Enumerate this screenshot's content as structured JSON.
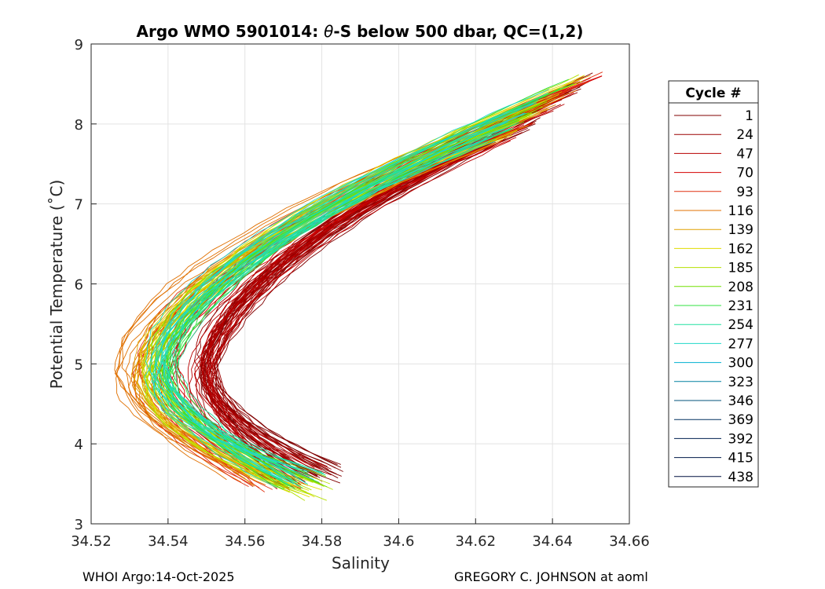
{
  "chart_data": {
    "type": "line",
    "title_prefix": "Argo WMO 5901014: ",
    "title_symbol": "θ",
    "title_suffix": "-S below 500 dbar,  QC=(1,2)",
    "xlabel": "Salinity",
    "ylabel": "Potential Temperature (˚C)",
    "xlim": [
      34.52,
      34.66
    ],
    "ylim": [
      3,
      9
    ],
    "xticks": [
      34.52,
      34.54,
      34.56,
      34.58,
      34.6,
      34.62,
      34.64,
      34.66
    ],
    "xtick_labels": [
      "34.52",
      "34.54",
      "34.56",
      "34.58",
      "34.6",
      "34.62",
      "34.64",
      "34.66"
    ],
    "yticks": [
      3,
      4,
      5,
      6,
      7,
      8,
      9
    ],
    "ytick_labels": [
      "3",
      "4",
      "5",
      "6",
      "7",
      "8",
      "9"
    ],
    "grid": true,
    "legend_title": "Cycle #",
    "legend_position": "right, outside plot",
    "series": [
      {
        "name": "1",
        "color": "#800000",
        "s_at_5C": 34.551,
        "deep_end": [
          34.58,
          3.62
        ]
      },
      {
        "name": "24",
        "color": "#9c0000",
        "s_at_5C": 34.55,
        "deep_end": [
          34.578,
          3.6
        ]
      },
      {
        "name": "47",
        "color": "#b80000",
        "s_at_5C": 34.548,
        "deep_end": [
          34.575,
          3.58
        ]
      },
      {
        "name": "70",
        "color": "#d40000",
        "s_at_5C": 34.54,
        "deep_end": [
          34.572,
          3.55
        ]
      },
      {
        "name": "93",
        "color": "#e03010",
        "s_at_5C": 34.534,
        "deep_end": [
          34.566,
          3.52
        ]
      },
      {
        "name": "116",
        "color": "#e07000",
        "s_at_5C": 34.529,
        "deep_end": [
          34.56,
          3.58
        ]
      },
      {
        "name": "139",
        "color": "#e0a000",
        "s_at_5C": 34.532,
        "deep_end": [
          34.568,
          3.55
        ]
      },
      {
        "name": "162",
        "color": "#e0dc00",
        "s_at_5C": 34.534,
        "deep_end": [
          34.574,
          3.45
        ]
      },
      {
        "name": "185",
        "color": "#b4e000",
        "s_at_5C": 34.536,
        "deep_end": [
          34.578,
          3.4
        ]
      },
      {
        "name": "208",
        "color": "#70e000",
        "s_at_5C": 34.538,
        "deep_end": [
          34.576,
          3.5
        ]
      },
      {
        "name": "231",
        "color": "#30e040",
        "s_at_5C": 34.54,
        "deep_end": [
          34.574,
          3.55
        ]
      },
      {
        "name": "254",
        "color": "#20e0a0",
        "s_at_5C": 34.539,
        "deep_end": [
          34.575,
          3.58
        ]
      },
      {
        "name": "277",
        "color": "#20d8c8",
        "s_at_5C": 34.537,
        "deep_end": [
          34.573,
          3.56
        ]
      },
      {
        "name": "300",
        "color": "#00b0d0",
        "s_at_5C": null,
        "deep_end": null
      },
      {
        "name": "323",
        "color": "#0080a0",
        "s_at_5C": null,
        "deep_end": null
      },
      {
        "name": "346",
        "color": "#005078",
        "s_at_5C": null,
        "deep_end": null
      },
      {
        "name": "369",
        "color": "#003060",
        "s_at_5C": null,
        "deep_end": null
      },
      {
        "name": "392",
        "color": "#002050",
        "s_at_5C": null,
        "deep_end": null
      },
      {
        "name": "415",
        "color": "#001848",
        "s_at_5C": null,
        "deep_end": null
      },
      {
        "name": "438",
        "color": "#001040",
        "s_at_5C": null,
        "deep_end": null
      }
    ],
    "upper_end": {
      "salinity": 34.655,
      "theta": 8.65
    }
  },
  "footer": {
    "left": "WHOI Argo:14-Oct-2025",
    "right": "GREGORY C. JOHNSON at aoml"
  }
}
